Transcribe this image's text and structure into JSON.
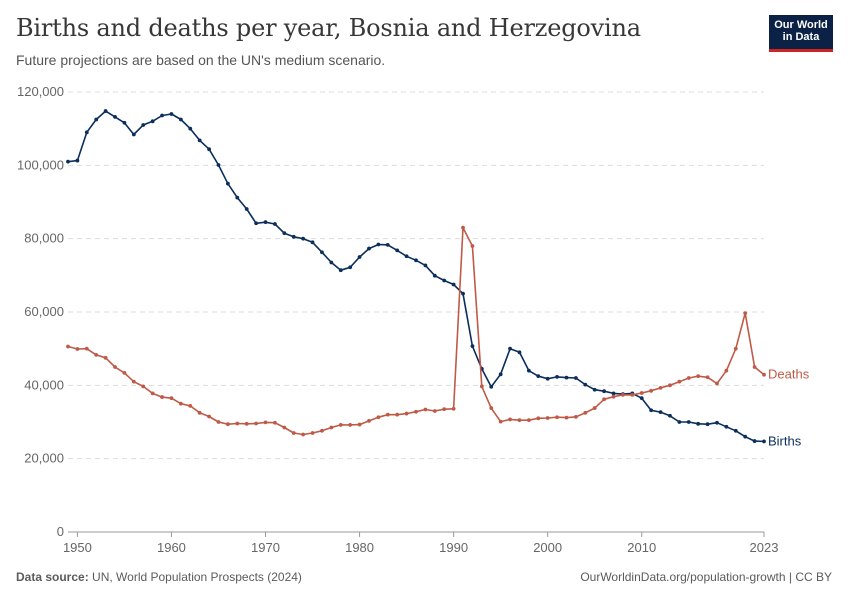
{
  "header": {
    "title": "Births and deaths per year, Bosnia and Herzegovina",
    "subtitle": "Future projections are based on the UN's medium scenario."
  },
  "logo": {
    "line1": "Our World",
    "line2": "in Data"
  },
  "footer": {
    "source_label": "Data source:",
    "source_text": "UN, World Population Prospects (2024)",
    "right_text": "OurWorldinData.org/population-growth | CC BY"
  },
  "colors": {
    "births": "#0b2e5a",
    "deaths": "#c05a48",
    "grid": "#dddddd"
  },
  "chart_data": {
    "type": "line",
    "title": "Births and deaths per year, Bosnia and Herzegovina",
    "subtitle": "Future projections are based on the UN's medium scenario.",
    "xlim": [
      1949,
      2023
    ],
    "ylim": [
      0,
      120000
    ],
    "yticks": [
      0,
      20000,
      40000,
      60000,
      80000,
      100000,
      120000
    ],
    "ytick_labels": [
      "0",
      "20,000",
      "40,000",
      "60,000",
      "80,000",
      "100,000",
      "120,000"
    ],
    "xticks": [
      1950,
      1960,
      1970,
      1980,
      1990,
      2000,
      2010,
      2023
    ],
    "xtick_labels": [
      "1950",
      "1960",
      "1970",
      "1980",
      "1990",
      "2000",
      "2010",
      "2023"
    ],
    "grid": "horizontal dashed",
    "legend": "inline labels at line ends",
    "x": [
      1949,
      1950,
      1951,
      1952,
      1953,
      1954,
      1955,
      1956,
      1957,
      1958,
      1959,
      1960,
      1961,
      1962,
      1963,
      1964,
      1965,
      1966,
      1967,
      1968,
      1969,
      1970,
      1971,
      1972,
      1973,
      1974,
      1975,
      1976,
      1977,
      1978,
      1979,
      1980,
      1981,
      1982,
      1983,
      1984,
      1985,
      1986,
      1987,
      1988,
      1989,
      1990,
      1991,
      1992,
      1993,
      1994,
      1995,
      1996,
      1997,
      1998,
      1999,
      2000,
      2001,
      2002,
      2003,
      2004,
      2005,
      2006,
      2007,
      2008,
      2009,
      2010,
      2011,
      2012,
      2013,
      2014,
      2015,
      2016,
      2017,
      2018,
      2019,
      2020,
      2021,
      2022,
      2023
    ],
    "series": [
      {
        "name": "Births",
        "values": [
          101000,
          101300,
          109000,
          112500,
          114800,
          113200,
          111600,
          108400,
          111000,
          112000,
          113600,
          114000,
          112500,
          110000,
          106800,
          104400,
          100100,
          95000,
          91200,
          88100,
          84200,
          84500,
          84000,
          81500,
          80500,
          80000,
          79000,
          76300,
          73500,
          71400,
          72200,
          75000,
          77300,
          78400,
          78300,
          76800,
          75200,
          74100,
          72700,
          69900,
          68600,
          67500,
          65000,
          50700,
          44500,
          39600,
          43000,
          50000,
          49000,
          44000,
          42500,
          41800,
          42300,
          42100,
          42000,
          40200,
          38800,
          38400,
          37800,
          37600,
          37800,
          36500,
          33200,
          32700,
          31700,
          30000,
          30000,
          29500,
          29400,
          29800,
          28700,
          27600,
          26000,
          24800,
          24700
        ]
      },
      {
        "name": "Deaths",
        "values": [
          50600,
          49900,
          50000,
          48300,
          47500,
          45000,
          43400,
          41000,
          39700,
          37800,
          36800,
          36500,
          35000,
          34400,
          32500,
          31500,
          30000,
          29400,
          29600,
          29500,
          29600,
          29900,
          29800,
          28500,
          27000,
          26600,
          27000,
          27600,
          28500,
          29200,
          29200,
          29300,
          30300,
          31300,
          32000,
          32000,
          32300,
          32800,
          33400,
          33000,
          33500,
          33600,
          83000,
          78000,
          39700,
          33800,
          30100,
          30700,
          30500,
          30500,
          31000,
          31100,
          31300,
          31200,
          31400,
          32500,
          33800,
          36200,
          36900,
          37400,
          37400,
          37900,
          38500,
          39300,
          40000,
          41000,
          42000,
          42500,
          42200,
          40500,
          44000,
          50000,
          59700,
          45000,
          42900
        ]
      }
    ],
    "annotations": [
      {
        "text": "Deaths",
        "series": "Deaths",
        "x": 2023,
        "y": 42900
      },
      {
        "text": "Births",
        "series": "Births",
        "x": 2023,
        "y": 24700
      }
    ]
  }
}
